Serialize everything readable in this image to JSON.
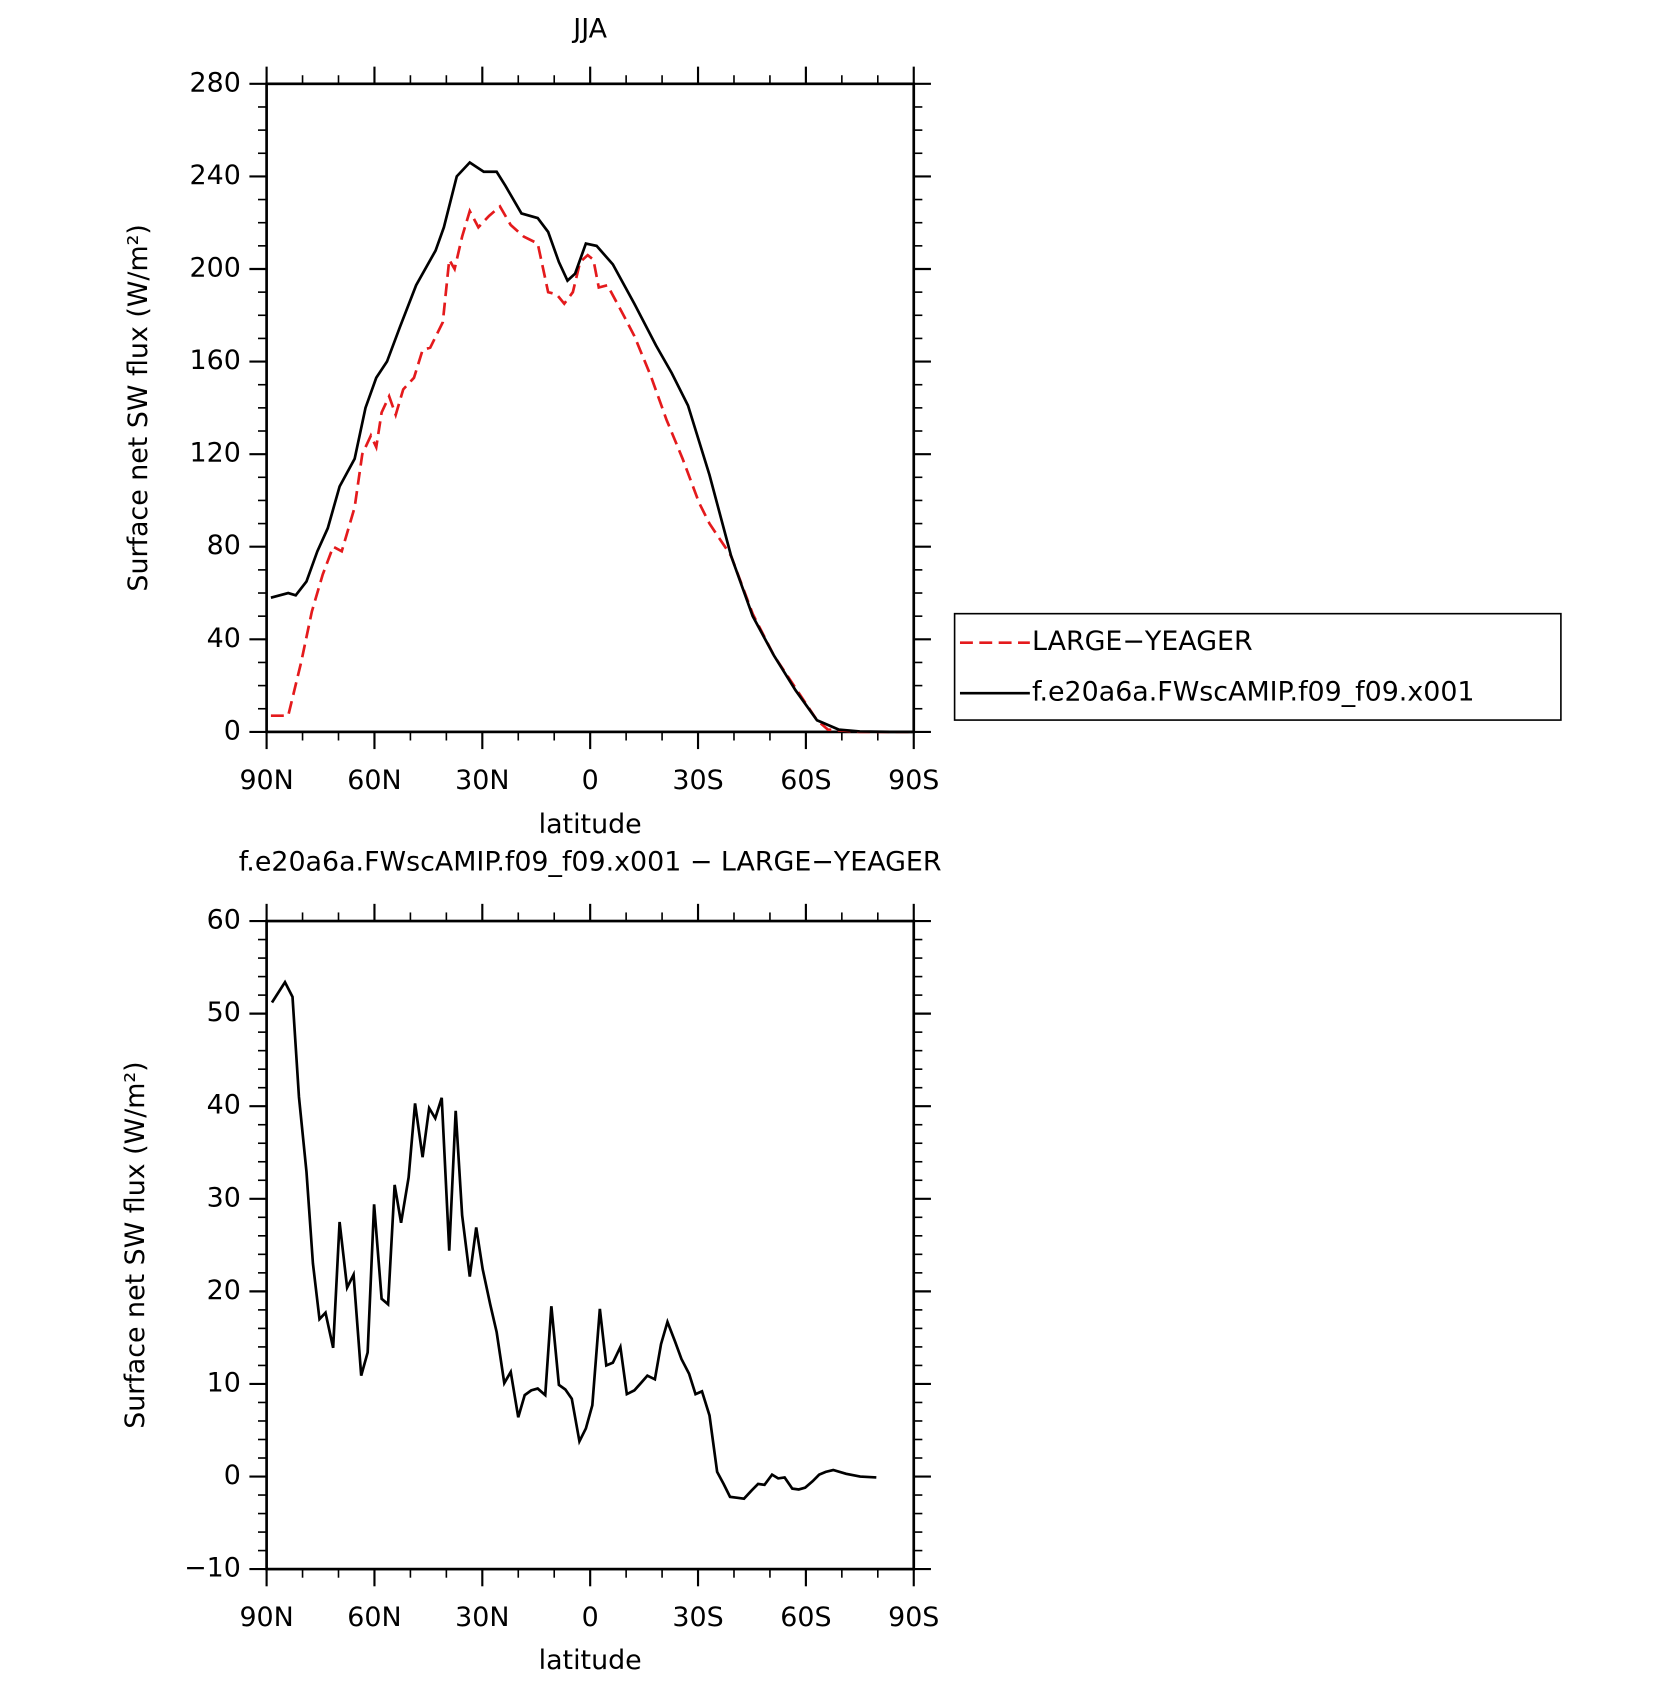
{
  "chart_data": [
    {
      "type": "line",
      "title": "JJA",
      "xlabel": "latitude",
      "ylabel": "Surface net SW flux (W/m²)",
      "xlim": [
        90,
        -90
      ],
      "xticks": [
        {
          "value": 90,
          "label": "90N"
        },
        {
          "value": 60,
          "label": "60N"
        },
        {
          "value": 30,
          "label": "30N"
        },
        0,
        {
          "value": -30,
          "label": "30S"
        },
        {
          "value": -60,
          "label": "60S"
        },
        {
          "value": -90,
          "label": "90S"
        }
      ],
      "ylim": [
        0,
        280
      ],
      "yticks": [
        0,
        40,
        80,
        120,
        160,
        200,
        240,
        280
      ],
      "legend": "outside-right",
      "series": [
        {
          "name": "LARGE−YEAGER",
          "color": "#e41a1c",
          "dash": "dashed",
          "x": [
            88.8,
            84.0,
            80.4,
            77.4,
            74.4,
            71.5,
            69.1,
            65.5,
            63.4,
            61.0,
            59.5,
            58.0,
            55.9,
            54.1,
            52.0,
            49.0,
            46.6,
            44.5,
            41.0,
            39.2,
            37.7,
            35.6,
            33.5,
            31.1,
            28.1,
            25.1,
            22.1,
            18.5,
            14.6,
            11.7,
            9.3,
            7.2,
            4.8,
            2.8,
            0.7,
            -0.9,
            -2.4,
            -4.8,
            -9.3,
            -12.3,
            -16.8,
            -21.2,
            -25.7,
            -30.3,
            -33.2,
            -39.2,
            -45.2,
            -51.1,
            -57.1,
            -63.1,
            -66.1,
            -75.0,
            -90.0
          ],
          "values": [
            7,
            7,
            30,
            52,
            68,
            80,
            78,
            97,
            120,
            128,
            123,
            138,
            145,
            137,
            148,
            153,
            165,
            166,
            177,
            204,
            200,
            214,
            225,
            218,
            223,
            227,
            219,
            214,
            211,
            190,
            189,
            185,
            190,
            203,
            206,
            204,
            192,
            193,
            180,
            171,
            154,
            135,
            118,
            99,
            90,
            76,
            51,
            33,
            19,
            5,
            1,
            0,
            0
          ]
        },
        {
          "name": "f.e20a6a.FWscAMIP.f09_f09.x001",
          "color": "#000000",
          "dash": "solid",
          "x": [
            88.8,
            84.0,
            81.9,
            78.9,
            75.9,
            73.0,
            69.7,
            65.5,
            62.5,
            59.5,
            56.5,
            52.9,
            48.4,
            43.0,
            40.7,
            37.1,
            33.5,
            29.6,
            26.0,
            23.6,
            19.1,
            14.6,
            11.7,
            8.7,
            6.3,
            4.2,
            1.2,
            -1.8,
            -6.3,
            -12.3,
            -18.3,
            -22.7,
            -27.2,
            -33.2,
            -39.2,
            -45.2,
            -51.1,
            -57.1,
            -63.1,
            -69.1,
            -75.0,
            -84.0,
            -90.0
          ],
          "values": [
            58,
            60,
            59,
            65,
            78,
            88,
            106,
            118,
            140,
            153,
            160,
            175,
            193,
            208,
            218,
            240,
            246,
            242,
            242,
            236,
            224,
            222,
            216,
            203,
            195,
            198,
            211,
            210,
            202,
            185,
            167,
            155,
            141,
            111,
            76,
            50,
            33,
            18,
            5,
            1,
            0.2,
            0,
            0
          ]
        }
      ]
    },
    {
      "type": "line",
      "title": "f.e20a6a.FWscAMIP.f09_f09.x001 − LARGE−YEAGER",
      "xlabel": "latitude",
      "ylabel": "Surface net SW flux (W/m²)",
      "xlim": [
        90,
        -90
      ],
      "xticks": [
        {
          "value": 90,
          "label": "90N"
        },
        {
          "value": 60,
          "label": "60N"
        },
        {
          "value": 30,
          "label": "30N"
        },
        0,
        {
          "value": -30,
          "label": "30S"
        },
        {
          "value": -60,
          "label": "60S"
        },
        {
          "value": -90,
          "label": "90S"
        }
      ],
      "ylim": [
        -10,
        60
      ],
      "yticks": [
        {
          "value": -10,
          "label": "−10"
        },
        0,
        10,
        20,
        30,
        40,
        50,
        60
      ],
      "series": [
        {
          "color": "#000000",
          "dash": "solid",
          "x": [
            88.5,
            84.9,
            82.8,
            81.0,
            78.9,
            77.1,
            75.3,
            73.6,
            71.5,
            69.7,
            67.6,
            65.8,
            63.7,
            61.9,
            60.1,
            58.0,
            56.2,
            54.4,
            52.6,
            50.5,
            48.7,
            46.6,
            44.8,
            43.1,
            41.3,
            39.2,
            37.4,
            35.6,
            33.5,
            31.7,
            29.9,
            27.8,
            26.0,
            23.9,
            22.1,
            20.0,
            18.2,
            16.4,
            14.6,
            12.5,
            10.8,
            8.7,
            6.9,
            5.1,
            3.0,
            1.2,
            -0.6,
            -2.7,
            -4.5,
            -6.3,
            -8.4,
            -10.2,
            -12.3,
            -14.1,
            -15.9,
            -18.0,
            -19.7,
            -21.5,
            -23.6,
            -25.4,
            -27.5,
            -29.3,
            -31.1,
            -33.2,
            -35.3,
            -37.1,
            -38.9,
            -41.0,
            -42.8,
            -44.9,
            -46.7,
            -48.5,
            -50.6,
            -52.3,
            -54.1,
            -56.2,
            -58.0,
            -59.8,
            -61.9,
            -63.7,
            -65.5,
            -67.6,
            -71.2,
            -75.1,
            -79.6
          ],
          "values": [
            51.2,
            53.4,
            51.8,
            41,
            32.9,
            23,
            17,
            17.7,
            13.9,
            27.5,
            20.4,
            21.8,
            10.9,
            13.4,
            29.4,
            19.2,
            18.6,
            31.5,
            27.4,
            32.3,
            40.3,
            34.5,
            39.8,
            38.7,
            40.9,
            24.4,
            39.5,
            28.2,
            21.6,
            26.9,
            22.4,
            18.6,
            15.6,
            10.1,
            11.3,
            6.4,
            8.8,
            9.3,
            9.5,
            8.8,
            18.4,
            9.9,
            9.4,
            8.4,
            3.8,
            5.2,
            7.7,
            18.1,
            12,
            12.3,
            14,
            8.9,
            9.3,
            10.1,
            10.9,
            10.5,
            14.3,
            16.7,
            14.6,
            12.7,
            11.1,
            8.9,
            9.2,
            6.6,
            0.5,
            -0.8,
            -2.2,
            -2.3,
            -2.4,
            -1.5,
            -0.8,
            -0.9,
            0.2,
            -0.2,
            -0.1,
            -1.3,
            -1.4,
            -1.2,
            -0.5,
            0.2,
            0.5,
            0.7,
            0.3,
            0,
            -0.1
          ]
        }
      ]
    }
  ]
}
